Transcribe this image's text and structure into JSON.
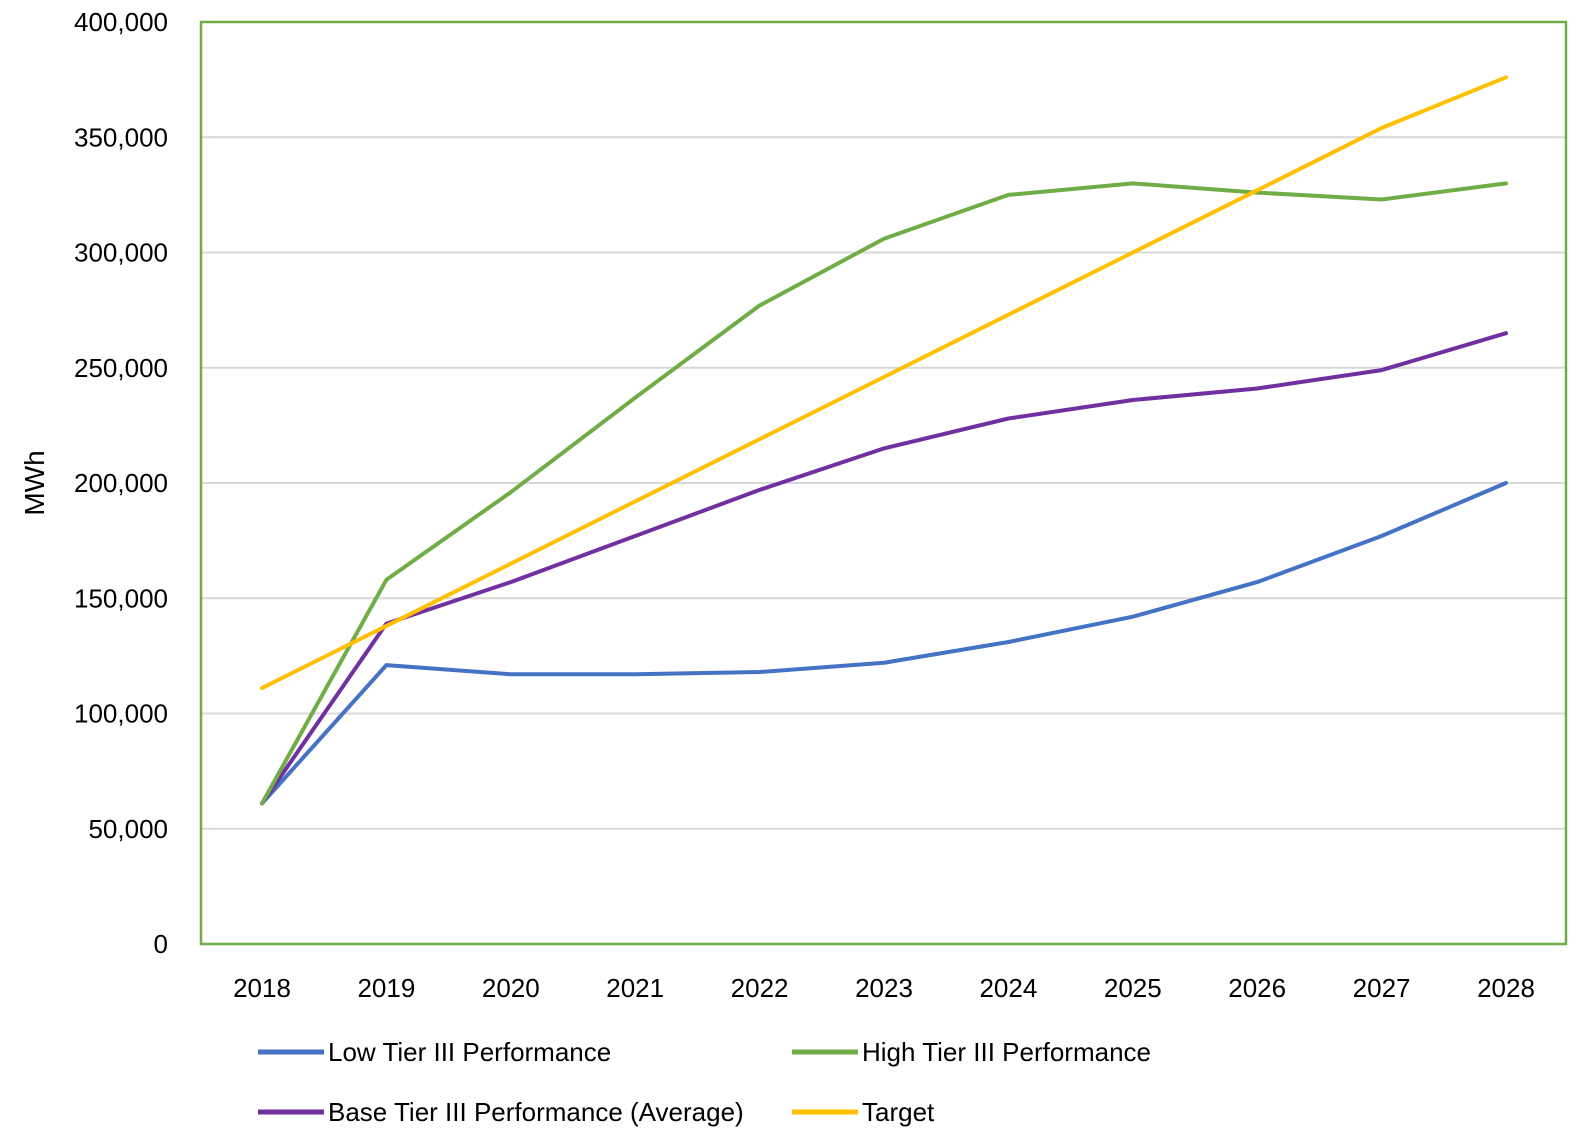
{
  "chart_data": {
    "type": "line",
    "title": "",
    "xlabel": "",
    "ylabel": "MWh",
    "x": [
      "2018",
      "2019",
      "2020",
      "2021",
      "2022",
      "2023",
      "2024",
      "2025",
      "2026",
      "2027",
      "2028"
    ],
    "ylim": [
      0,
      400000
    ],
    "yticks": [
      0,
      50000,
      100000,
      150000,
      200000,
      250000,
      300000,
      350000,
      400000
    ],
    "ytick_labels": [
      "0",
      "50,000",
      "100,000",
      "150,000",
      "200,000",
      "250,000",
      "300,000",
      "350,000",
      "400,000"
    ],
    "grid": "horizontal",
    "legend_position": "bottom",
    "series": [
      {
        "name": "Low Tier III Performance",
        "color": "#4472C4",
        "values": [
          61000,
          121000,
          117000,
          117000,
          118000,
          122000,
          131000,
          142000,
          157000,
          177000,
          200000
        ]
      },
      {
        "name": "High Tier III Performance",
        "color": "#70AD47",
        "values": [
          61000,
          158000,
          196000,
          237000,
          277000,
          306000,
          325000,
          330000,
          326000,
          323000,
          330000
        ]
      },
      {
        "name": "Base Tier III Performance (Average)",
        "color": "#7030A0",
        "values": [
          61000,
          139000,
          157000,
          177000,
          197000,
          215000,
          228000,
          236000,
          241000,
          249000,
          265000
        ]
      },
      {
        "name": "Target",
        "color": "#FFC000",
        "values": [
          111000,
          138000,
          165000,
          192000,
          219000,
          246000,
          273000,
          300000,
          327000,
          354000,
          376000
        ]
      }
    ],
    "frame_color": "#70AD47",
    "gridline_color": "#D9D9D9"
  }
}
